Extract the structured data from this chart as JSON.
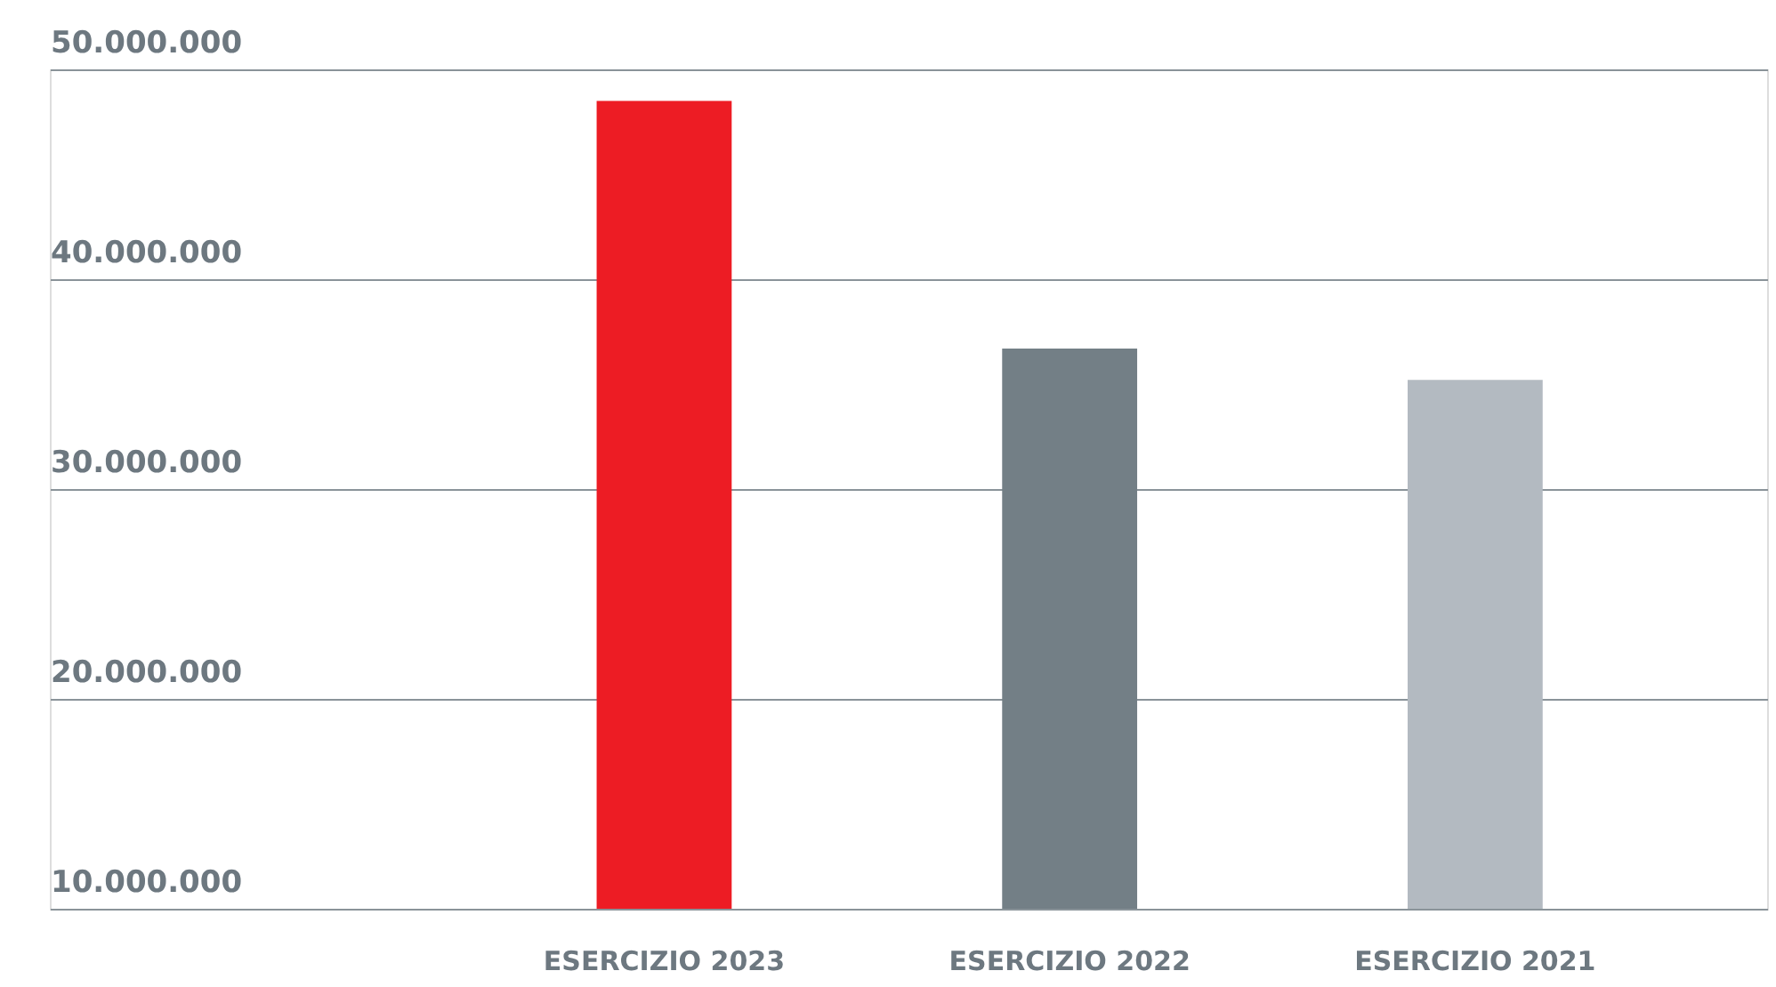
{
  "chart_data": {
    "type": "bar",
    "categories": [
      "ESERCIZIO 2023",
      "ESERCIZIO 2022",
      "ESERCIZIO 2021"
    ],
    "values": [
      48500000,
      36700000,
      35200000
    ],
    "colors": [
      "#ed1c24",
      "#737f86",
      "#b3bac1"
    ],
    "ylim": [
      10000000,
      50000000
    ],
    "yticks": [
      {
        "value": 10000000,
        "label": "10.000.000"
      },
      {
        "value": 20000000,
        "label": "20.000.000"
      },
      {
        "value": 30000000,
        "label": "30.000.000"
      },
      {
        "value": 40000000,
        "label": "40.000.000"
      },
      {
        "value": 50000000,
        "label": "50.000.000"
      }
    ],
    "grid": "y"
  }
}
